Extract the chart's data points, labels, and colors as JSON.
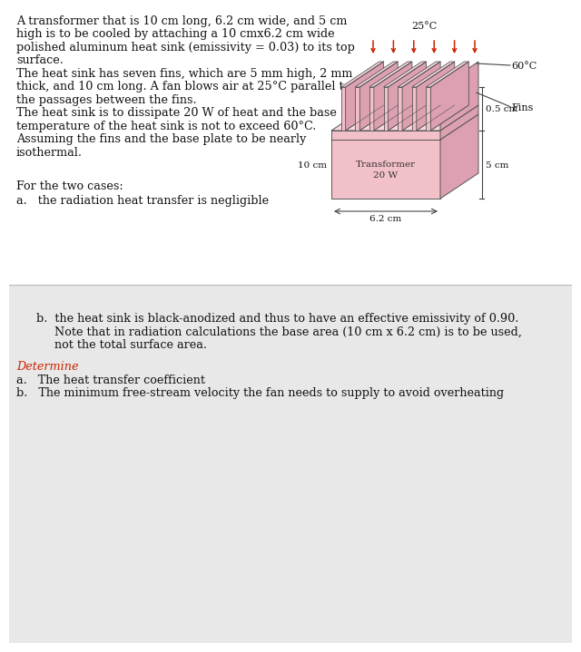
{
  "white_color": "#ffffff",
  "pink_light": "#f2c0c8",
  "pink_mid": "#e09aaa",
  "pink_dark": "#c87888",
  "pink_top": "#f8d8de",
  "pink_side": "#dca0b0",
  "gray_outline": "#555555",
  "ann_color": "#444444",
  "text_color": "#111111",
  "red_color": "#cc2200",
  "red_label": "#cc2200",
  "section2_bg": "#e8e8e8",
  "main_lines": [
    "A transformer that is 10 cm long, 6.2 cm wide, and 5 cm",
    "high is to be cooled by attaching a 10 cmx6.2 cm wide",
    "polished aluminum heat sink (emissivity = 0.03) to its top",
    "surface.",
    "The heat sink has seven fins, which are 5 mm high, 2 mm",
    "thick, and 10 cm long. A fan blows air at 25°C parallel to",
    "the passages between the fins.",
    "The heat sink is to dissipate 20 W of heat and the base",
    "temperature of the heat sink is not to exceed 60°C.",
    "Assuming the fins and the base plate to be nearly",
    "isothermal."
  ],
  "for_cases": "For the two cases:",
  "case_a": "a.   the radiation heat transfer is negligible",
  "case_b1": "b.  the heat sink is black-anodized and thus to have an effective emissivity of 0.90.",
  "case_b2": "     Note that in radiation calculations the base area (10 cm x 6.2 cm) is to be used,",
  "case_b3": "     not the total surface area.",
  "determine": "Determine",
  "det_a": "a.   The heat transfer coefficient",
  "det_b": "b.   The minimum free-stream velocity the fan needs to supply to avoid overheating",
  "lbl_25c": "25°C",
  "lbl_60c": "60°C",
  "lbl_fins": "Fins",
  "lbl_05cm": "0.5 cm",
  "lbl_5cm": "5 cm",
  "lbl_10cm": "10 cm",
  "lbl_62cm": "6.2 cm",
  "lbl_transformer": "Transformer\n20 W",
  "font_main": 9.2,
  "font_diagram": 7.5,
  "font_annot": 8.0
}
